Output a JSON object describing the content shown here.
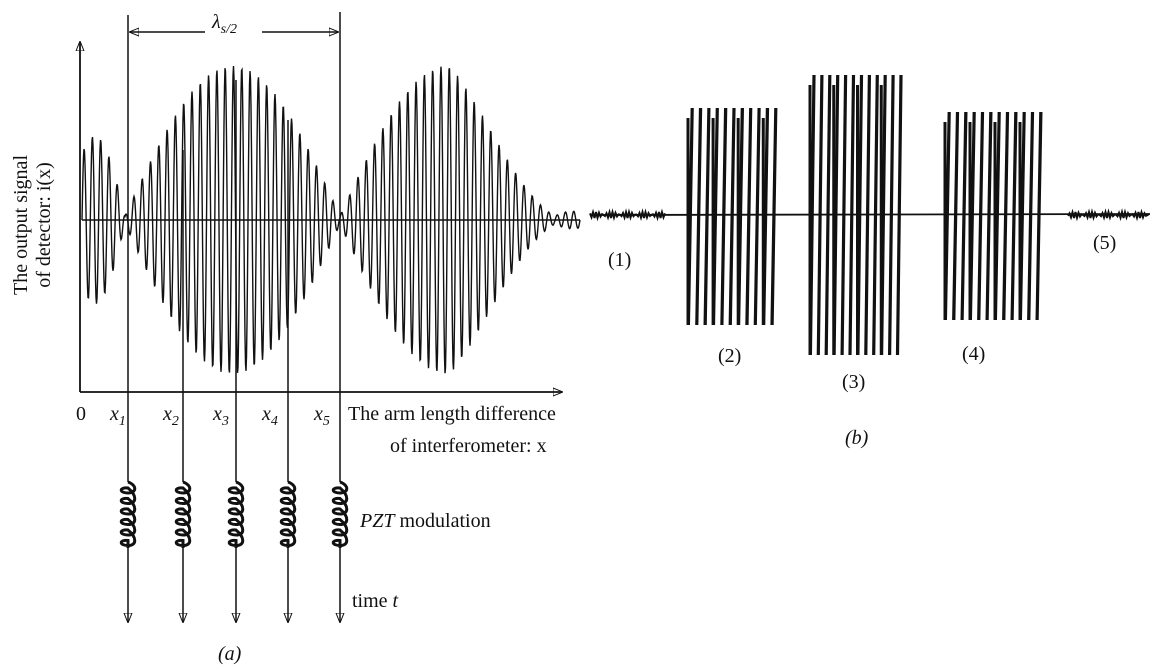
{
  "lambda_label": {
    "symbol": "λ",
    "subscript": "s/2"
  },
  "y_axis_label": [
    "The output  signal",
    "of detector: i(x)"
  ],
  "origin_label": "0",
  "positions": [
    {
      "symbol": "x",
      "subscript": "1"
    },
    {
      "symbol": "x",
      "subscript": "2"
    },
    {
      "symbol": "x",
      "subscript": "3"
    },
    {
      "symbol": "x",
      "subscript": "4"
    },
    {
      "symbol": "x",
      "subscript": "5"
    }
  ],
  "x_axis_label": [
    "The arm length difference",
    "of interferometer: x"
  ],
  "modulation_label": {
    "symbol": "PZT",
    "text": "modulation"
  },
  "time_label": {
    "text": "time",
    "symbol": "t"
  },
  "panel_a": "(a)",
  "panel_b": "(b)",
  "segments": [
    "(1)",
    "(2)",
    "(3)",
    "(4)",
    "(5)"
  ]
}
